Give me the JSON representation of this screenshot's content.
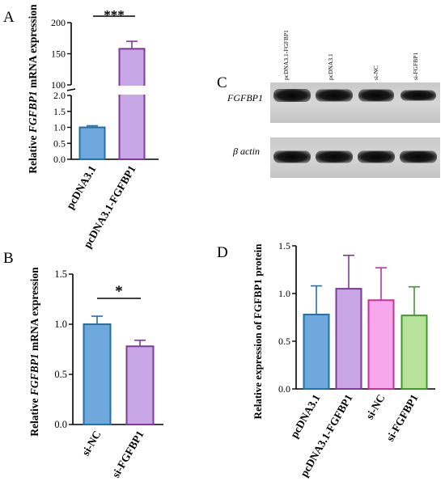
{
  "panel_a": {
    "letter": "A",
    "ylabel_pre": "Relative ",
    "ylabel_gene": "FGFBP1",
    "ylabel_post": " mRNA expression",
    "significance": "***",
    "colors": {
      "bar1_fill": "#6fa8dc",
      "bar1_edge": "#2471a3",
      "bar2_fill": "#c9a7e6",
      "bar2_edge": "#7d3c98"
    }
  },
  "panel_b": {
    "letter": "B",
    "ylabel_pre": "Relative ",
    "ylabel_gene": "FGFBP1",
    "ylabel_post": " mRNA expression",
    "significance": "*",
    "colors": {
      "bar1_fill": "#6fa8dc",
      "bar1_edge": "#2471a3",
      "bar2_fill": "#c9a7e6",
      "bar2_edge": "#7d3c98"
    }
  },
  "panel_c": {
    "letter": "C",
    "lanes": [
      "pcDNA3.1-FGFBP1",
      "pcDNA3.1",
      "si-NC",
      "si-FGFBP1"
    ],
    "rows": [
      "FGFBP1",
      "β actin"
    ]
  },
  "panel_d": {
    "letter": "D",
    "ylabel": "Relative expression  of FGFBP1 protein",
    "colors": {
      "fills": [
        "#6fa8dc",
        "#c9a7e6",
        "#f7a8ec",
        "#b9e39a"
      ],
      "edges": [
        "#2471a3",
        "#7d3c98",
        "#c2339a",
        "#3c9a2e"
      ]
    }
  },
  "chart_data": [
    {
      "type": "bar",
      "panel": "A",
      "categories": [
        "pcDNA3.1",
        "pcDNA3.1-FGFBP1"
      ],
      "values": [
        1.0,
        158
      ],
      "errors": [
        0.05,
        12
      ],
      "ylabel": "Relative FGFBP1 mRNA expression",
      "axis_break": {
        "lower": [
          0,
          2.0
        ],
        "upper": [
          100,
          200
        ]
      },
      "lower_ticks": [
        0.0,
        0.5,
        1.0,
        1.5,
        2.0
      ],
      "upper_ticks": [
        100,
        150,
        200
      ],
      "annotation": "***"
    },
    {
      "type": "bar",
      "panel": "B",
      "categories": [
        "si-NC",
        "si-FGFBP1"
      ],
      "values": [
        1.0,
        0.78
      ],
      "errors": [
        0.08,
        0.06
      ],
      "ylabel": "Relative FGFBP1 mRNA expression",
      "ylim": [
        0,
        1.5
      ],
      "ticks": [
        0.0,
        0.5,
        1.0,
        1.5
      ],
      "annotation": "*"
    },
    {
      "type": "bar",
      "panel": "D",
      "categories": [
        "pcDNA3.1",
        "pcDNA3.1-FGFBP1",
        "si-NC",
        "si-FGFBP1"
      ],
      "values": [
        0.78,
        1.05,
        0.93,
        0.77
      ],
      "errors": [
        0.3,
        0.35,
        0.34,
        0.3
      ],
      "ylabel": "Relative expression  of FGFBP1 protein",
      "ylim": [
        0,
        1.5
      ],
      "ticks": [
        0.0,
        0.5,
        1.0,
        1.5
      ]
    }
  ]
}
